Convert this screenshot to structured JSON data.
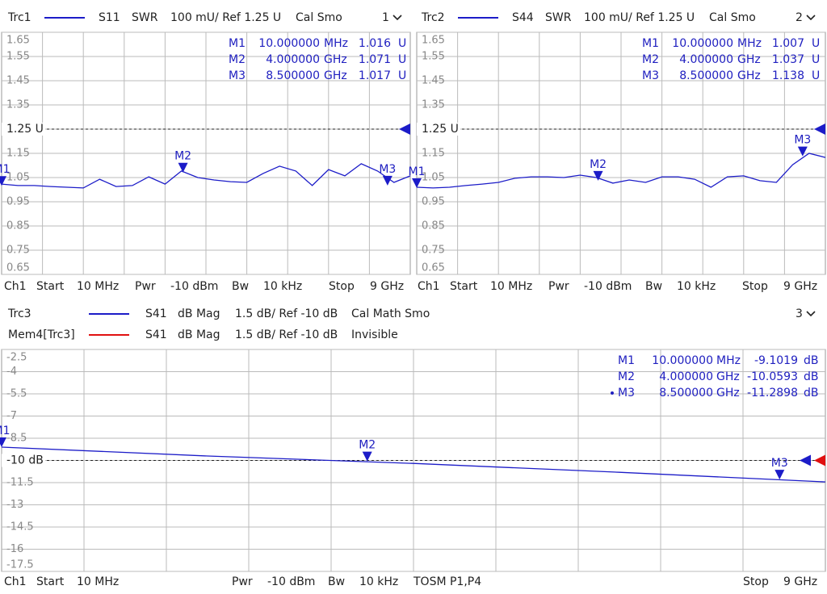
{
  "chart_data": [
    {
      "type": "line",
      "channel": 1,
      "xlim": [
        {
          "value": 10,
          "label": "10 MHz"
        },
        {
          "value": 9000,
          "label": "9 GHz"
        }
      ],
      "ylim": [
        0.65,
        1.65
      ],
      "yticks": [
        0.65,
        0.75,
        0.85,
        0.95,
        1.05,
        1.15,
        1.25,
        1.35,
        1.45,
        1.55,
        1.65
      ],
      "ref": {
        "value": 1.25,
        "label": "1.25 U"
      },
      "series": [
        {
          "name": "Trc1",
          "color": "#1c1cc8",
          "param": "S11",
          "format": "SWR",
          "scale": "100 mU/ Ref 1.25 U",
          "flags": "Cal Smo",
          "values": [
            1.023,
            1.017,
            1.017,
            1.013,
            1.01,
            1.007,
            1.043,
            1.013,
            1.017,
            1.053,
            1.023,
            1.077,
            1.05,
            1.04,
            1.033,
            1.03,
            1.067,
            1.097,
            1.077,
            1.017,
            1.083,
            1.057,
            1.107,
            1.077,
            1.03,
            1.057
          ]
        }
      ],
      "markers": [
        {
          "name": "M1",
          "x": {
            "value": 10,
            "label": "10.000000"
          },
          "x_unit": "MHz",
          "y": 1.016,
          "y_unit": "U"
        },
        {
          "name": "M2",
          "x": {
            "value": 4000,
            "label": "4.000000"
          },
          "x_unit": "GHz",
          "y": 1.071,
          "y_unit": "U"
        },
        {
          "name": "M3",
          "x": {
            "value": 8500,
            "label": "8.500000"
          },
          "x_unit": "GHz",
          "y": 1.017,
          "y_unit": "U"
        }
      ],
      "footer": {
        "ch": "Ch1",
        "start": "Start",
        "pwr": "Pwr",
        "power": "-10 dBm",
        "bw": "Bw",
        "bandwidth": "10 kHz",
        "stop": "Stop"
      }
    },
    {
      "type": "line",
      "channel": 2,
      "xlim": [
        {
          "value": 10,
          "label": "10 MHz"
        },
        {
          "value": 9000,
          "label": "9 GHz"
        }
      ],
      "ylim": [
        0.65,
        1.65
      ],
      "yticks": [
        0.65,
        0.75,
        0.85,
        0.95,
        1.05,
        1.15,
        1.25,
        1.35,
        1.45,
        1.55,
        1.65
      ],
      "ref": {
        "value": 1.25,
        "label": "1.25 U"
      },
      "series": [
        {
          "name": "Trc2",
          "color": "#1c1cc8",
          "param": "S44",
          "format": "SWR",
          "scale": "100 mU/ Ref 1.25 U",
          "flags": "Cal Smo",
          "values": [
            1.01,
            1.007,
            1.01,
            1.017,
            1.023,
            1.03,
            1.047,
            1.053,
            1.053,
            1.05,
            1.06,
            1.05,
            1.027,
            1.04,
            1.03,
            1.053,
            1.053,
            1.043,
            1.01,
            1.053,
            1.057,
            1.037,
            1.03,
            1.103,
            1.15,
            1.133
          ]
        }
      ],
      "markers": [
        {
          "name": "M1",
          "x": {
            "value": 10,
            "label": "10.000000"
          },
          "x_unit": "MHz",
          "y": 1.007,
          "y_unit": "U"
        },
        {
          "name": "M2",
          "x": {
            "value": 4000,
            "label": "4.000000"
          },
          "x_unit": "GHz",
          "y": 1.037,
          "y_unit": "U"
        },
        {
          "name": "M3",
          "x": {
            "value": 8500,
            "label": "8.500000"
          },
          "x_unit": "GHz",
          "y": 1.138,
          "y_unit": "U"
        }
      ],
      "footer": {
        "ch": "Ch1",
        "start": "Start",
        "pwr": "Pwr",
        "power": "-10 dBm",
        "bw": "Bw",
        "bandwidth": "10 kHz",
        "stop": "Stop"
      }
    },
    {
      "type": "line",
      "channel": 3,
      "xlim": [
        {
          "value": 10,
          "label": "10 MHz"
        },
        {
          "value": 9000,
          "label": "9 GHz"
        }
      ],
      "ylim": [
        -17.5,
        -2.5
      ],
      "yticks": [
        -17.5,
        -16,
        -14.5,
        -13,
        -11.5,
        -10,
        -8.5,
        -7,
        -5.5,
        -4,
        -2.5
      ],
      "ref": {
        "value": -10,
        "label": "-10 dB"
      },
      "series": [
        {
          "name": "Trc3",
          "color": "#1c1cc8",
          "param": "S41",
          "format": "dB Mag",
          "scale": "1.5 dB/ Ref -10 dB",
          "flags": "Cal Math Smo",
          "values": [
            -9.1,
            -9.7,
            -10.2,
            -10.8,
            -11.45
          ]
        },
        {
          "name": "Mem4[Trc3]",
          "color": "#e01010",
          "param": "S41",
          "format": "dB Mag",
          "scale": "1.5 dB/ Ref -10 dB",
          "flags": "Invisible"
        }
      ],
      "markers": [
        {
          "name": "M1",
          "x": {
            "value": 10,
            "label": "10.000000"
          },
          "x_unit": "MHz",
          "y": -9.1019,
          "y_unit": "dB"
        },
        {
          "name": "M2",
          "x": {
            "value": 4000,
            "label": "4.000000"
          },
          "x_unit": "GHz",
          "y": -10.0593,
          "y_unit": "dB"
        },
        {
          "name": "M3",
          "x": {
            "value": 8500,
            "label": "8.500000"
          },
          "x_unit": "GHz",
          "y": -11.2898,
          "y_unit": "dB"
        }
      ],
      "footer": {
        "ch": "Ch1",
        "start": "Start",
        "pwr": "Pwr",
        "power": "-10 dBm",
        "bw": "Bw",
        "bandwidth": "10 kHz",
        "extra": "TOSM P1,P4",
        "stop": "Stop"
      }
    }
  ]
}
